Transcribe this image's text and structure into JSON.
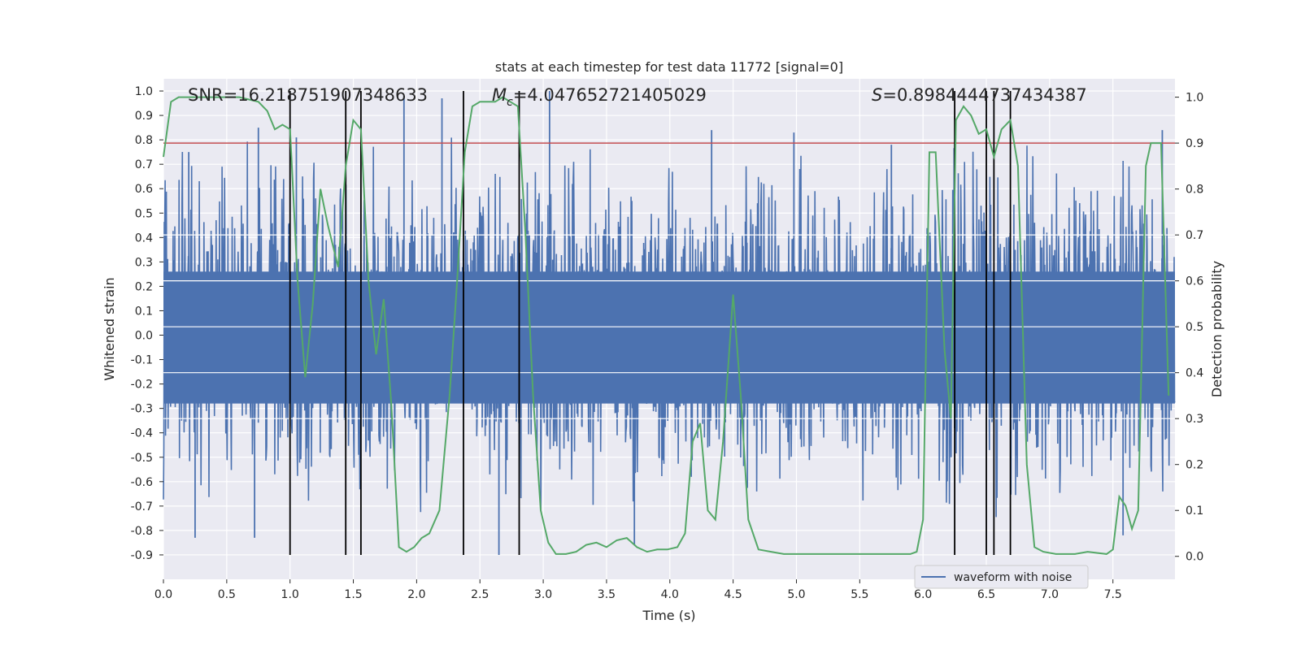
{
  "chart_data": {
    "type": "line",
    "title": "stats at each timestep for test data 11772 [signal=0]",
    "xlabel": "Time (s)",
    "ylabel_left": "Whitened strain",
    "ylabel_right": "Detection probability",
    "xlim": [
      0.0,
      7.99
    ],
    "ylim_left": [
      -1.0,
      1.05
    ],
    "ylim_right": [
      -0.05,
      1.04
    ],
    "x_ticks": [
      0.0,
      0.5,
      1.0,
      1.5,
      2.0,
      2.5,
      3.0,
      3.5,
      4.0,
      4.5,
      5.0,
      5.5,
      6.0,
      6.5,
      7.0,
      7.5
    ],
    "x_tick_labels": [
      "0.0",
      "0.5",
      "1.0",
      "1.5",
      "2.0",
      "2.5",
      "3.0",
      "3.5",
      "4.0",
      "4.5",
      "5.0",
      "5.5",
      "6.0",
      "6.5",
      "7.0",
      "7.5"
    ],
    "y_left_ticks": [
      1.0,
      0.9,
      0.8,
      0.7,
      0.6,
      0.5,
      0.4,
      0.3,
      0.2,
      0.1,
      0.0,
      -0.1,
      -0.2,
      -0.3,
      -0.4,
      -0.5,
      -0.6,
      -0.7,
      -0.8,
      -0.9
    ],
    "y_left_tick_labels": [
      "1.0",
      "0.9",
      "0.8",
      "0.7",
      "0.6",
      "0.5",
      "0.4",
      "0.3",
      "0.2",
      "0.1",
      "0.0",
      "-0.1",
      "-0.2",
      "-0.3",
      "-0.4",
      "-0.5",
      "-0.6",
      "-0.7",
      "-0.8",
      "-0.9"
    ],
    "y_right_ticks": [
      1.0,
      0.9,
      0.8,
      0.7,
      0.6,
      0.5,
      0.4,
      0.3,
      0.2,
      0.1,
      0.0
    ],
    "y_right_tick_labels": [
      "1.0",
      "0.9",
      "0.8",
      "0.7",
      "0.6",
      "0.5",
      "0.4",
      "0.3",
      "0.2",
      "0.1",
      "0.0"
    ],
    "annotations": {
      "snr": "SNR=16.218751907348633",
      "mc_symbol": "M",
      "mc_sub": "c",
      "mc_value": "=4.047652721405029",
      "s_symbol": "S",
      "s_value": "=0.8984444737434387"
    },
    "threshold": {
      "value": 0.9,
      "axis": "right",
      "color": "#c44e52"
    },
    "vertical_markers": [
      1.0,
      1.44,
      1.56,
      2.37,
      2.81,
      6.25,
      6.5,
      6.56,
      6.69
    ],
    "legend": {
      "label": "waveform with noise",
      "location": "bottom-right"
    },
    "series": [
      {
        "name": "waveform with noise",
        "axis": "left",
        "color": "#4c72b0",
        "style": "noise",
        "typical_range": [
          -0.35,
          0.42
        ],
        "peak_max": 1.0,
        "peak_min": -0.9,
        "spike_highs": [
          {
            "x": 0.75,
            "y": 0.85
          },
          {
            "x": 0.2,
            "y": 0.75
          },
          {
            "x": 1.05,
            "y": 0.81
          },
          {
            "x": 1.9,
            "y": 0.98
          },
          {
            "x": 2.2,
            "y": 0.97
          },
          {
            "x": 3.05,
            "y": 1.0
          },
          {
            "x": 4.33,
            "y": 0.84
          },
          {
            "x": 4.98,
            "y": 0.83
          },
          {
            "x": 5.75,
            "y": 0.78
          },
          {
            "x": 7.89,
            "y": 0.84
          }
        ],
        "spike_lows": [
          {
            "x": 0.25,
            "y": -0.83
          },
          {
            "x": 0.72,
            "y": -0.83
          },
          {
            "x": 2.65,
            "y": -0.9
          },
          {
            "x": 3.72,
            "y": -0.86
          },
          {
            "x": 7.58,
            "y": -0.82
          }
        ]
      },
      {
        "name": "detection probability",
        "axis": "right",
        "color": "#55a868",
        "x": [
          0.0,
          0.06,
          0.12,
          0.2,
          0.4,
          0.6,
          0.75,
          0.82,
          0.88,
          0.94,
          1.0,
          1.06,
          1.12,
          1.18,
          1.24,
          1.3,
          1.38,
          1.44,
          1.5,
          1.56,
          1.62,
          1.68,
          1.74,
          1.8,
          1.86,
          1.92,
          1.98,
          2.04,
          2.1,
          2.18,
          2.26,
          2.32,
          2.38,
          2.44,
          2.5,
          2.56,
          2.62,
          2.68,
          2.74,
          2.8,
          2.86,
          2.92,
          2.98,
          3.04,
          3.1,
          3.18,
          3.26,
          3.34,
          3.42,
          3.5,
          3.58,
          3.66,
          3.74,
          3.82,
          3.9,
          3.98,
          4.06,
          4.12,
          4.18,
          4.24,
          4.3,
          4.36,
          4.42,
          4.5,
          4.56,
          4.62,
          4.7,
          4.8,
          4.9,
          5.1,
          5.3,
          5.5,
          5.7,
          5.9,
          5.95,
          6.0,
          6.05,
          6.1,
          6.17,
          6.22,
          6.26,
          6.32,
          6.38,
          6.44,
          6.5,
          6.56,
          6.62,
          6.69,
          6.75,
          6.82,
          6.88,
          6.95,
          7.05,
          7.2,
          7.3,
          7.45,
          7.5,
          7.55,
          7.6,
          7.65,
          7.7,
          7.76,
          7.8,
          7.88,
          7.94
        ],
        "values": [
          0.87,
          0.99,
          1.0,
          1.0,
          1.0,
          1.0,
          0.99,
          0.97,
          0.93,
          0.94,
          0.93,
          0.6,
          0.39,
          0.55,
          0.8,
          0.72,
          0.63,
          0.85,
          0.95,
          0.93,
          0.6,
          0.44,
          0.56,
          0.33,
          0.02,
          0.01,
          0.02,
          0.04,
          0.05,
          0.1,
          0.35,
          0.6,
          0.88,
          0.98,
          0.99,
          0.99,
          0.99,
          1.0,
          0.99,
          0.98,
          0.7,
          0.35,
          0.1,
          0.03,
          0.005,
          0.005,
          0.01,
          0.025,
          0.03,
          0.02,
          0.035,
          0.04,
          0.02,
          0.01,
          0.015,
          0.015,
          0.02,
          0.05,
          0.25,
          0.29,
          0.1,
          0.08,
          0.25,
          0.57,
          0.35,
          0.08,
          0.015,
          0.01,
          0.005,
          0.005,
          0.005,
          0.005,
          0.005,
          0.005,
          0.01,
          0.08,
          0.88,
          0.88,
          0.45,
          0.3,
          0.95,
          0.98,
          0.96,
          0.92,
          0.93,
          0.87,
          0.93,
          0.95,
          0.85,
          0.2,
          0.02,
          0.01,
          0.005,
          0.005,
          0.01,
          0.005,
          0.015,
          0.13,
          0.11,
          0.06,
          0.1,
          0.85,
          0.9,
          0.9,
          0.35
        ]
      }
    ]
  }
}
